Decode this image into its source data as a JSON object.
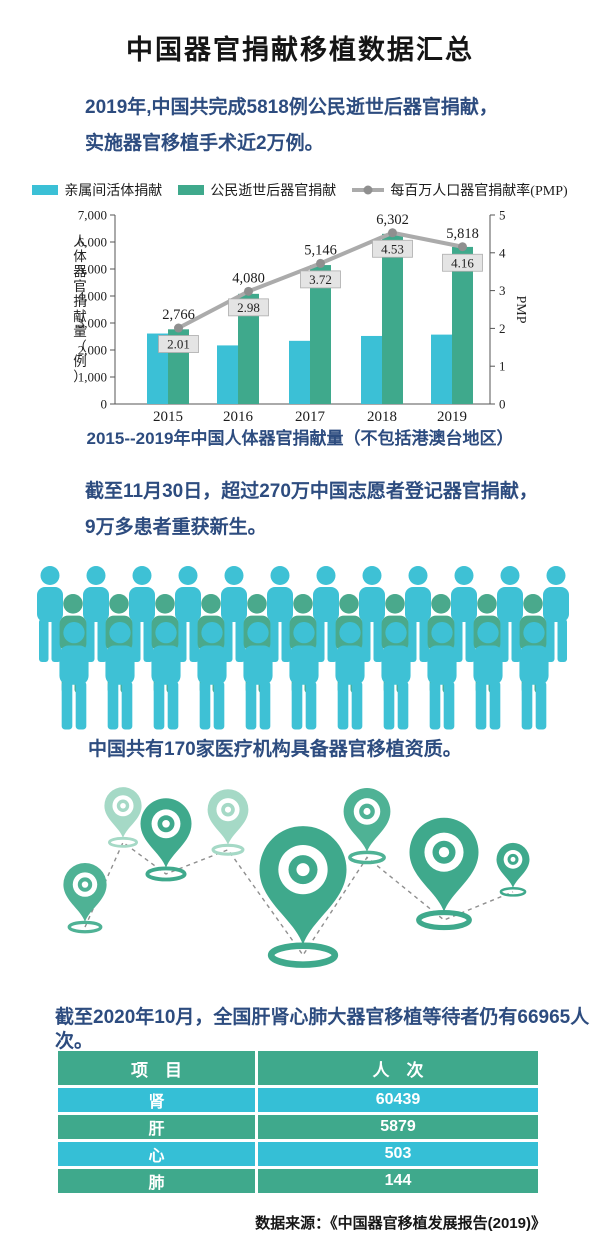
{
  "title": "中国器官捐献移植数据汇总",
  "intro": {
    "line1": "2019年,中国共完成5818例公民逝世后器官捐献，",
    "line2": "实施器官移植手术近2万例。"
  },
  "chart_data": {
    "type": "bar+line",
    "categories": [
      "2015",
      "2016",
      "2017",
      "2018",
      "2019"
    ],
    "series": [
      {
        "name": "亲属间活体捐献",
        "type": "bar",
        "color": "#3bc0d6",
        "values": [
          2610,
          2170,
          2340,
          2520,
          2570
        ]
      },
      {
        "name": "公民逝世后器官捐献",
        "type": "bar",
        "color": "#3fa98c",
        "values": [
          2766,
          4080,
          5146,
          6302,
          5818
        ],
        "data_labels": [
          "2,766",
          "4,080",
          "5,146",
          "6,302",
          "5,818"
        ]
      },
      {
        "name": "每百万人口器官捐献率(PMP)",
        "type": "line",
        "color": "#ababab",
        "marker_color": "#8f8f8f",
        "values": [
          2.01,
          2.98,
          3.72,
          4.53,
          4.16
        ],
        "data_labels": [
          "2.01",
          "2.98",
          "3.72",
          "4.53",
          "4.16"
        ]
      }
    ],
    "left_axis": {
      "label": "人体器官捐献量（例）",
      "max": 7000,
      "tick_labels": [
        "0",
        "1,000",
        "2,000",
        "3,000",
        "4,000",
        "5,000",
        "6,000",
        "7,000"
      ]
    },
    "right_axis": {
      "label": "PMP",
      "max": 5,
      "tick_labels": [
        "0",
        "1",
        "2",
        "3",
        "4",
        "5"
      ]
    },
    "caption": "2015--2019年中国人体器官捐献量（不包括港澳台地区）",
    "legend_position": "top",
    "grid": false,
    "pmp_label_box_bg": "#e4e4e4"
  },
  "registration": {
    "line1": "截至11月30日，超过270万中国志愿者登记器官捐献，",
    "line2": "9万多患者重获新生。"
  },
  "crowd": {
    "rows": [
      {
        "count": 12,
        "color": "#3ec1d5"
      },
      {
        "count": 11,
        "color": "#4aa98c"
      },
      {
        "count": 11,
        "color": "#3ec1d5"
      }
    ]
  },
  "institutions_text": "中国共有170家医疗机构具备器官移植资质。",
  "pins": {
    "count": 8,
    "shades": [
      "medium",
      "light",
      "dark",
      "light",
      "dark",
      "medium",
      "dark",
      "dark"
    ],
    "colors": {
      "dark": "#3fa98c",
      "medium": "#4fb295",
      "light": "#a5d9c6"
    }
  },
  "waiting_text": "截至2020年10月，全国肝肾心肺大器官移植等待者仍有66965人次。",
  "table": {
    "headers": [
      "项　目",
      "人　次"
    ],
    "rows": [
      [
        "肾",
        "60439"
      ],
      [
        "肝",
        "5879"
      ],
      [
        "心",
        "503"
      ],
      [
        "肺",
        "144"
      ]
    ],
    "header_color": "#3fa98c",
    "row_colors": [
      "#35bfd6",
      "#3fa98c",
      "#35bfd6",
      "#3fa98c"
    ]
  },
  "source": "数据来源：《中国器官移植发展报告(2019)》"
}
